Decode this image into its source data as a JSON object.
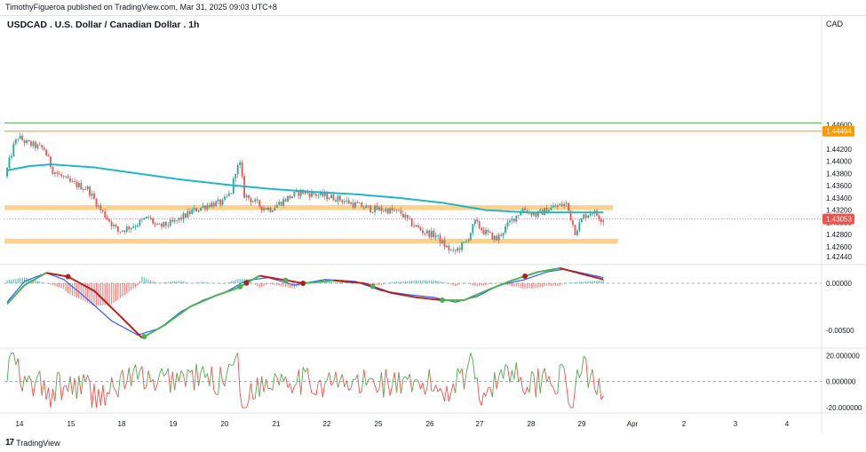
{
  "header": {
    "publish_text": "TimothyFigueroa published on TradingView.com, Mar 31, 2025 09:03 UTC+8",
    "title": "USDCAD . U.S. Dollar / Canadian Dollar . 1h",
    "currency": "CAD"
  },
  "footer": {
    "logo_text": "TradingView"
  },
  "colors": {
    "bull": "#26a69a",
    "bear": "#ef5350",
    "ma": "#22b5c7",
    "zone": "#ffcc80",
    "macd_fast": "#2962ff",
    "macd_signal_up": "#4caf50",
    "macd_signal_down": "#b71c1c",
    "osc_up": "#4caf50",
    "osc_down": "#ef5350",
    "top_line": "#4caf50",
    "resistance_line": "#ff9800",
    "last_price": "#ef5350"
  },
  "chart_data": [
    {
      "type": "candlestick",
      "name": "price",
      "ylim": [
        1.4232,
        1.4615
      ],
      "y_ticks": [
        "1.44600",
        "1.44200",
        "1.44000",
        "1.43800",
        "1.43600",
        "1.43400",
        "1.43200",
        "1.43000",
        "1.42800",
        "1.42600",
        "1.42440"
      ],
      "x_ticks": [
        "14",
        "15",
        "18",
        "19",
        "20",
        "21",
        "22",
        "25",
        "26",
        "27",
        "28",
        "29",
        "Apr",
        "2",
        "3",
        "4"
      ],
      "price_labels": {
        "resistance": "1.44494",
        "last": "1.43053"
      },
      "levels": {
        "top_line": 1.4463,
        "resistance": 1.44494,
        "last": 1.43053
      },
      "zones": [
        {
          "from": 1.432,
          "to": 1.4328
        },
        {
          "from": 1.4265,
          "to": 1.4273
        }
      ],
      "keypoints": [
        [
          0,
          1.4375
        ],
        [
          4,
          1.4425
        ],
        [
          6,
          1.444
        ],
        [
          10,
          1.443
        ],
        [
          18,
          1.442
        ],
        [
          22,
          1.4385
        ],
        [
          30,
          1.4365
        ],
        [
          38,
          1.4355
        ],
        [
          44,
          1.432
        ],
        [
          52,
          1.4285
        ],
        [
          60,
          1.4296
        ],
        [
          66,
          1.4308
        ],
        [
          70,
          1.4292
        ],
        [
          78,
          1.43
        ],
        [
          86,
          1.4318
        ],
        [
          94,
          1.433
        ],
        [
          100,
          1.4332
        ],
        [
          104,
          1.435
        ],
        [
          106,
          1.4385
        ],
        [
          108,
          1.4395
        ],
        [
          110,
          1.4345
        ],
        [
          118,
          1.4325
        ],
        [
          122,
          1.4322
        ],
        [
          130,
          1.434
        ],
        [
          136,
          1.435
        ],
        [
          144,
          1.4345
        ],
        [
          152,
          1.434
        ],
        [
          160,
          1.433
        ],
        [
          168,
          1.4322
        ],
        [
          176,
          1.432
        ],
        [
          182,
          1.4315
        ],
        [
          186,
          1.43
        ],
        [
          192,
          1.4285
        ],
        [
          198,
          1.4278
        ],
        [
          202,
          1.4262
        ],
        [
          206,
          1.425
        ],
        [
          212,
          1.4268
        ],
        [
          216,
          1.43
        ],
        [
          220,
          1.4285
        ],
        [
          226,
          1.4272
        ],
        [
          232,
          1.43
        ],
        [
          238,
          1.4322
        ],
        [
          244,
          1.4312
        ],
        [
          252,
          1.4325
        ],
        [
          258,
          1.433
        ],
        [
          262,
          1.4285
        ],
        [
          266,
          1.431
        ],
        [
          270,
          1.4318
        ],
        [
          274,
          1.4306
        ]
      ],
      "moving_average": [
        [
          0,
          1.4385
        ],
        [
          10,
          1.4392
        ],
        [
          20,
          1.4395
        ],
        [
          40,
          1.439
        ],
        [
          60,
          1.438
        ],
        [
          80,
          1.437
        ],
        [
          100,
          1.4362
        ],
        [
          120,
          1.4355
        ],
        [
          140,
          1.435
        ],
        [
          160,
          1.4346
        ],
        [
          180,
          1.434
        ],
        [
          200,
          1.4332
        ],
        [
          220,
          1.432
        ],
        [
          240,
          1.4316
        ],
        [
          274,
          1.4316
        ]
      ]
    },
    {
      "type": "line",
      "name": "macd",
      "ylim": [
        -0.0067,
        0.0016
      ],
      "y_ticks": [
        "0.00000",
        "-0.00500"
      ],
      "fast": [
        [
          0,
          -0.002
        ],
        [
          8,
          0.0002
        ],
        [
          18,
          0.0011
        ],
        [
          26,
          0.0004
        ],
        [
          36,
          -0.0015
        ],
        [
          48,
          -0.004
        ],
        [
          60,
          -0.0055
        ],
        [
          70,
          -0.0048
        ],
        [
          80,
          -0.003
        ],
        [
          90,
          -0.0018
        ],
        [
          100,
          -0.001
        ],
        [
          110,
          0.0003
        ],
        [
          120,
          0.0006
        ],
        [
          132,
          -0.0002
        ],
        [
          146,
          0.0004
        ],
        [
          160,
          0.0002
        ],
        [
          172,
          -0.0008
        ],
        [
          184,
          -0.0012
        ],
        [
          196,
          -0.0015
        ],
        [
          206,
          -0.002
        ],
        [
          216,
          -0.0014
        ],
        [
          226,
          -0.0002
        ],
        [
          238,
          0.0004
        ],
        [
          248,
          0.0012
        ],
        [
          256,
          0.0015
        ],
        [
          266,
          0.001
        ],
        [
          274,
          0.0006
        ]
      ],
      "signal": [
        [
          0,
          -0.0022
        ],
        [
          8,
          -0.0002
        ],
        [
          18,
          0.0011
        ],
        [
          28,
          0.0007
        ],
        [
          40,
          -0.0008
        ],
        [
          52,
          -0.0035
        ],
        [
          62,
          -0.0058
        ],
        [
          72,
          -0.0045
        ],
        [
          84,
          -0.0025
        ],
        [
          96,
          -0.0013
        ],
        [
          106,
          -0.0005
        ],
        [
          116,
          0.0008
        ],
        [
          126,
          0.0004
        ],
        [
          136,
          0.0
        ],
        [
          150,
          0.0003
        ],
        [
          164,
          0.0
        ],
        [
          176,
          -0.001
        ],
        [
          188,
          -0.0015
        ],
        [
          200,
          -0.0018
        ],
        [
          210,
          -0.0018
        ],
        [
          220,
          -0.0008
        ],
        [
          232,
          0.0003
        ],
        [
          244,
          0.0012
        ],
        [
          254,
          0.0016
        ],
        [
          264,
          0.001
        ],
        [
          274,
          0.0004
        ]
      ],
      "cross_markers": [
        [
          28,
          "down"
        ],
        [
          63,
          "up"
        ],
        [
          107,
          "up"
        ],
        [
          110,
          "down"
        ],
        [
          128,
          "up"
        ],
        [
          136,
          "down"
        ],
        [
          168,
          "up"
        ],
        [
          200,
          "up"
        ],
        [
          238,
          "down"
        ]
      ]
    },
    {
      "type": "line",
      "name": "oscillator",
      "ylim": [
        -22,
        25
      ],
      "y_ticks": [
        "20.000000",
        "0.000000",
        "-20.000000"
      ],
      "values_note_seed": 7
    }
  ]
}
